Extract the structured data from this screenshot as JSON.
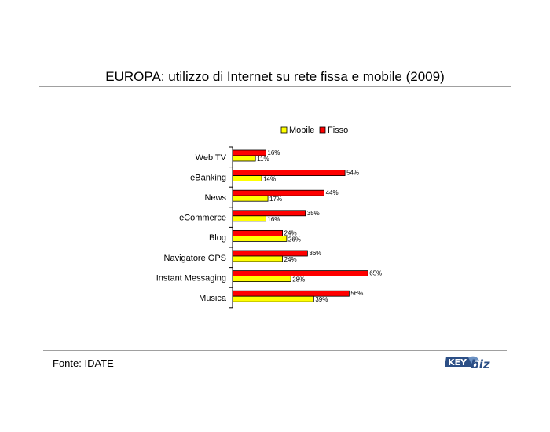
{
  "title": "EUROPA: utilizzo di Internet su rete fissa e mobile (2009)",
  "source": "Fonte: IDATE",
  "logo_text": "KEY4biz",
  "chart_data": {
    "type": "bar",
    "orientation": "horizontal",
    "title": "",
    "xlabel": "",
    "ylabel": "",
    "xlim": [
      0,
      70
    ],
    "grid": false,
    "legend_position": "top",
    "categories": [
      "Web TV",
      "eBanking",
      "News",
      "eCommerce",
      "Blog",
      "Navigatore GPS",
      "Instant Messaging",
      "Musica"
    ],
    "series": [
      {
        "name": "Mobile",
        "color": "#ffff00",
        "values": [
          11,
          14,
          17,
          16,
          26,
          24,
          28,
          39
        ],
        "labels": [
          "11%",
          "14%",
          "17%",
          "16%",
          "26%",
          "24%",
          "28%",
          "39%"
        ]
      },
      {
        "name": "Fisso",
        "color": "#ff0000",
        "values": [
          16,
          54,
          44,
          35,
          24,
          36,
          65,
          56
        ],
        "labels": [
          "16%",
          "54%",
          "44%",
          "35%",
          "24%",
          "36%",
          "65%",
          "56%"
        ]
      }
    ]
  }
}
